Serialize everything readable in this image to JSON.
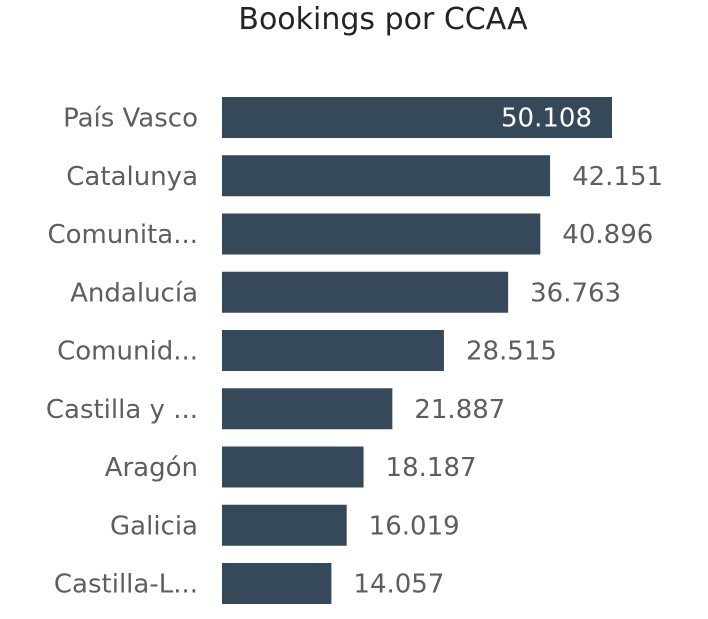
{
  "chart_data": {
    "type": "bar",
    "orientation": "horizontal",
    "title": "Bookings por CCAA",
    "categories": [
      "País Vasco",
      "Catalunya",
      "Comunita...",
      "Andalucía",
      "Comunid...",
      "Castilla y ...",
      "Aragón",
      "Galicia",
      "Castilla-L..."
    ],
    "values": [
      50108,
      42151,
      40896,
      36763,
      28515,
      21887,
      18187,
      16019,
      14057
    ],
    "value_labels": [
      "50.108",
      "42.151",
      "40.896",
      "36.763",
      "28.515",
      "21.887",
      "18.187",
      "16.019",
      "14.057"
    ],
    "xlim": [
      0,
      50108
    ],
    "grid": false,
    "legend": "none",
    "bar_color": "#36495a",
    "label_color": "#605e5c"
  }
}
